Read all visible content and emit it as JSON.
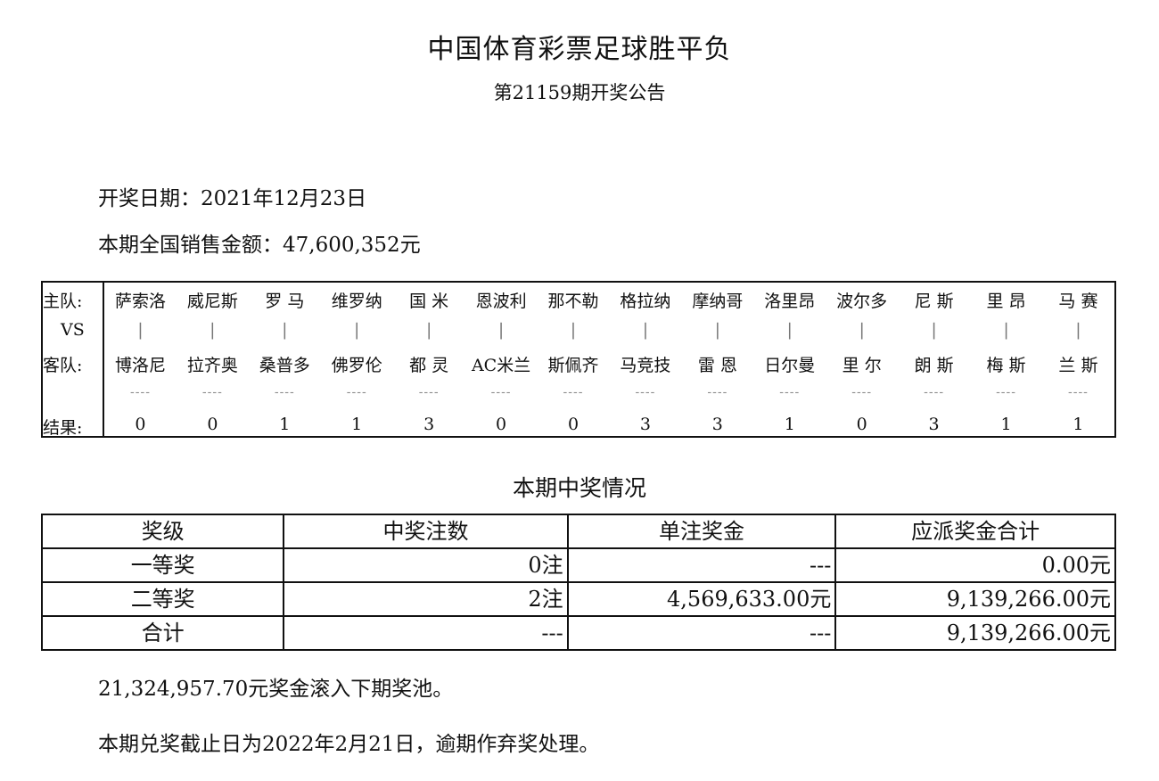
{
  "header": {
    "title": "中国体育彩票足球胜平负",
    "subtitle": "第21159期开奖公告"
  },
  "info": {
    "draw_date": "开奖日期：2021年12月23日",
    "sales": "本期全国销售金额：47,600,352元"
  },
  "match_table": {
    "labels": {
      "home": "主队:",
      "vs": "VS",
      "away": "客队:",
      "result": "结果:"
    },
    "separator": "|",
    "dash": "----",
    "matches": [
      {
        "home": "萨索洛",
        "away": "博洛尼",
        "result": "0"
      },
      {
        "home": "威尼斯",
        "away": "拉齐奥",
        "result": "0"
      },
      {
        "home": "罗 马",
        "away": "桑普多",
        "result": "1"
      },
      {
        "home": "维罗纳",
        "away": "佛罗伦",
        "result": "1"
      },
      {
        "home": "国 米",
        "away": "都 灵",
        "result": "3"
      },
      {
        "home": "恩波利",
        "away": "AC米兰",
        "result": "0"
      },
      {
        "home": "那不勒",
        "away": "斯佩齐",
        "result": "0"
      },
      {
        "home": "格拉纳",
        "away": "马竞技",
        "result": "3"
      },
      {
        "home": "摩纳哥",
        "away": "雷 恩",
        "result": "3"
      },
      {
        "home": "洛里昂",
        "away": "日尔曼",
        "result": "1"
      },
      {
        "home": "波尔多",
        "away": "里 尔",
        "result": "0"
      },
      {
        "home": "尼 斯",
        "away": "朗 斯",
        "result": "3"
      },
      {
        "home": "里 昂",
        "away": "梅 斯",
        "result": "1"
      },
      {
        "home": "马 赛",
        "away": "兰 斯",
        "result": "1"
      }
    ]
  },
  "prize": {
    "heading": "本期中奖情况",
    "columns": [
      "奖级",
      "中奖注数",
      "单注奖金",
      "应派奖金合计"
    ],
    "rows": [
      [
        "一等奖",
        "0注",
        "---",
        "0.00元"
      ],
      [
        "二等奖",
        "2注",
        "4,569,633.00元",
        "9,139,266.00元"
      ],
      [
        "合计",
        "---",
        "---",
        "9,139,266.00元"
      ]
    ]
  },
  "footer": {
    "rollover": "21,324,957.70元奖金滚入下期奖池。",
    "deadline": "本期兑奖截止日为2022年2月21日，逾期作弃奖处理。"
  }
}
